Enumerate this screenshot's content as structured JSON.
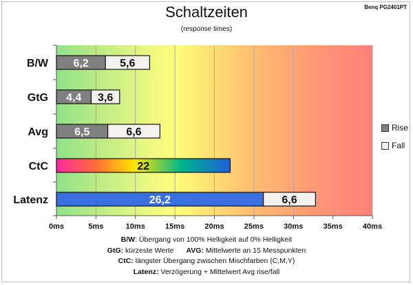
{
  "title": "Schaltzeiten",
  "subtitle": "(response times)",
  "monitor": "Benq PG2401PT",
  "colors": {
    "rise": "#808080",
    "fall": "#f4f2ee",
    "latency": "#3a6fe0"
  },
  "legend": {
    "rise": "Rise",
    "fall": "Fall"
  },
  "notes": {
    "line1_key": "B/W",
    "line1_text": ":  Übergang von 100% Helligkeit auf 0% Helligkeit",
    "line2a_key": "GtG:",
    "line2a_text": " kürzeste  Werte",
    "line2b_key": "AVG:",
    "line2b_text": " Mittelwerte  an 15 Messpunkten",
    "line3_key": "CtC:",
    "line3_text": " längster Übergang  zwischen Mischfarben  (C,M,Y)",
    "line4_key": "Latenz:",
    "line4_text": " Verzögerung  + Mittelwert  Avg rise/fall"
  },
  "chart_data": {
    "type": "bar",
    "orientation": "horizontal",
    "stacked": true,
    "title": "Schaltzeiten",
    "subtitle": "(response times)",
    "categories": [
      "B/W",
      "GtG",
      "Avg",
      "CtC",
      "Latenz"
    ],
    "xlim": [
      0,
      40
    ],
    "x_ticks": [
      "0ms",
      "5ms",
      "10ms",
      "15ms",
      "20ms",
      "25ms",
      "30ms",
      "35ms",
      "40ms"
    ],
    "grid": true,
    "legend_position": "right",
    "series": [
      {
        "name": "Rise",
        "values": [
          6.2,
          4.4,
          6.5,
          null,
          null
        ]
      },
      {
        "name": "Fall",
        "values": [
          5.6,
          3.6,
          6.6,
          null,
          6.6
        ]
      }
    ],
    "extra": {
      "ctc": 22,
      "latency": 26.2
    },
    "data_labels": {
      "B/W": [
        "6,2",
        "5,6"
      ],
      "GtG": [
        "4,4",
        "3,6"
      ],
      "Avg": [
        "6,5",
        "6,6"
      ],
      "CtC": [
        "22"
      ],
      "Latenz": [
        "26,2",
        "6,6"
      ]
    }
  }
}
